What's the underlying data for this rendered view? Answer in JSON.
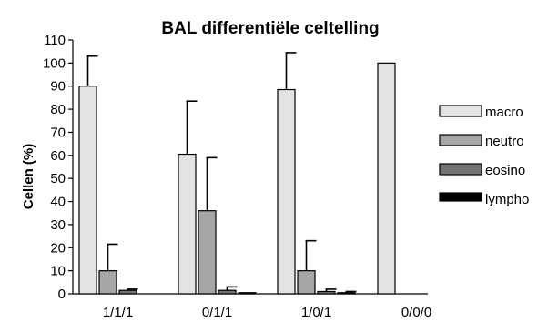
{
  "chart_data": {
    "type": "bar",
    "title": "BAL differentiële celtelling",
    "xlabel": "",
    "ylabel": "Cellen (%)",
    "ylim": [
      0,
      110
    ],
    "yticks": [
      0,
      10,
      20,
      30,
      40,
      50,
      60,
      70,
      80,
      90,
      100,
      110
    ],
    "grid": false,
    "legend_position": "right",
    "categories": [
      "1/1/1",
      "0/1/1",
      "1/0/1",
      "0/0/0"
    ],
    "series": [
      {
        "name": "macro",
        "color": "#e3e3e3",
        "values": [
          90,
          60.5,
          88.5,
          100
        ],
        "errors": [
          13,
          23,
          16,
          0
        ]
      },
      {
        "name": "neutro",
        "color": "#a6a6a6",
        "values": [
          10,
          36,
          10,
          0
        ],
        "errors": [
          11.5,
          23,
          13,
          0
        ]
      },
      {
        "name": "eosino",
        "color": "#737373",
        "values": [
          1.5,
          1.5,
          1,
          0
        ],
        "errors": [
          0.5,
          1.5,
          1,
          0
        ]
      },
      {
        "name": "lympho",
        "color": "#000000",
        "values": [
          0,
          0.5,
          0.5,
          0
        ],
        "errors": [
          0,
          0,
          0.5,
          0
        ]
      }
    ]
  }
}
